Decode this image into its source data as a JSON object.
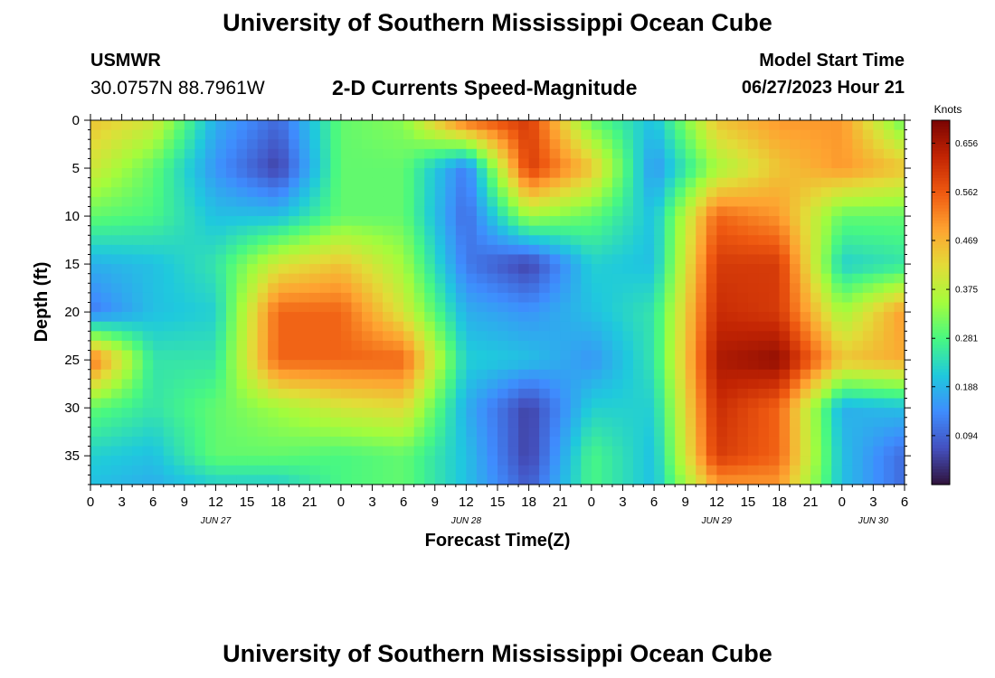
{
  "header": {
    "title": "University of Southern Mississippi Ocean Cube",
    "station": "USMWR",
    "coords": "30.0757N  88.7961W",
    "subtitle": "2-D Currents Speed-Magnitude",
    "start_label": "Model Start Time",
    "start_value": "06/27/2023 Hour 21"
  },
  "footer": {
    "title": "University of Southern Mississippi Ocean Cube"
  },
  "chart_data": {
    "type": "heatmap",
    "title": "2-D Currents Speed-Magnitude",
    "xlabel": "Forecast Time(Z)",
    "ylabel": "Depth (ft)",
    "x_ticks": [
      "0",
      "3",
      "6",
      "9",
      "12",
      "15",
      "18",
      "21",
      "0",
      "3",
      "6",
      "9",
      "12",
      "15",
      "18",
      "21",
      "0",
      "3",
      "6",
      "9",
      "12",
      "15",
      "18",
      "21",
      "0",
      "3",
      "6"
    ],
    "date_labels": [
      {
        "label": "JUN 27",
        "hour": 12
      },
      {
        "label": "JUN 28",
        "hour": 36
      },
      {
        "label": "JUN 29",
        "hour": 60
      },
      {
        "label": "JUN 30",
        "hour": 75
      }
    ],
    "xlim": [
      0,
      78
    ],
    "ylim": [
      0,
      38
    ],
    "y_ticks": [
      0,
      5,
      10,
      15,
      20,
      25,
      30,
      35
    ],
    "y_inverted": true,
    "colorbar": {
      "label": "Knots",
      "ticks": [
        "0.656",
        "0.562",
        "0.469",
        "0.375",
        "0.281",
        "0.188",
        "0.094"
      ],
      "tick_values": [
        0.656,
        0.562,
        0.469,
        0.375,
        0.281,
        0.188,
        0.094
      ],
      "range": [
        0,
        0.7
      ]
    },
    "grid_hours": [
      0,
      6,
      12,
      18,
      24,
      30,
      36,
      42,
      48,
      54,
      60,
      66,
      72,
      78
    ],
    "grid_depths": [
      0,
      5,
      10,
      15,
      20,
      25,
      30,
      35,
      38
    ],
    "grid_values": [
      [
        0.45,
        0.4,
        0.18,
        0.1,
        0.3,
        0.33,
        0.55,
        0.6,
        0.3,
        0.2,
        0.45,
        0.5,
        0.5,
        0.3
      ],
      [
        0.4,
        0.3,
        0.15,
        0.05,
        0.3,
        0.3,
        0.12,
        0.6,
        0.45,
        0.15,
        0.35,
        0.45,
        0.5,
        0.45
      ],
      [
        0.3,
        0.28,
        0.2,
        0.2,
        0.3,
        0.3,
        0.1,
        0.35,
        0.3,
        0.2,
        0.55,
        0.5,
        0.3,
        0.3
      ],
      [
        0.18,
        0.2,
        0.25,
        0.4,
        0.45,
        0.35,
        0.12,
        0.05,
        0.22,
        0.2,
        0.6,
        0.6,
        0.22,
        0.25
      ],
      [
        0.12,
        0.2,
        0.22,
        0.55,
        0.55,
        0.4,
        0.18,
        0.15,
        0.2,
        0.25,
        0.62,
        0.6,
        0.35,
        0.5
      ],
      [
        0.55,
        0.25,
        0.25,
        0.55,
        0.55,
        0.55,
        0.22,
        0.2,
        0.15,
        0.25,
        0.65,
        0.68,
        0.45,
        0.48
      ],
      [
        0.3,
        0.25,
        0.3,
        0.35,
        0.4,
        0.42,
        0.18,
        0.05,
        0.22,
        0.22,
        0.62,
        0.55,
        0.18,
        0.2
      ],
      [
        0.22,
        0.2,
        0.3,
        0.3,
        0.28,
        0.3,
        0.2,
        0.05,
        0.28,
        0.2,
        0.6,
        0.55,
        0.2,
        0.1
      ],
      [
        0.2,
        0.18,
        0.22,
        0.22,
        0.28,
        0.3,
        0.2,
        0.08,
        0.28,
        0.2,
        0.5,
        0.5,
        0.2,
        0.1
      ]
    ]
  }
}
